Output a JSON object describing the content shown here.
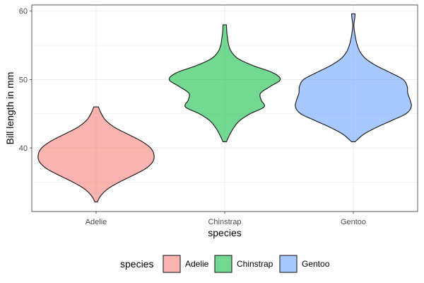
{
  "chart_data": {
    "type": "violin",
    "xlabel": "species",
    "ylabel": "Bill length in mm",
    "categories": [
      "Adelie",
      "Chinstrap",
      "Gentoo"
    ],
    "ylim": [
      30.7,
      60.9
    ],
    "yticks": [
      40,
      50,
      60
    ],
    "grid": true,
    "legend": {
      "title": "species",
      "position": "bottom"
    },
    "series": [
      {
        "name": "Adelie",
        "color": "#F8766D",
        "range": [
          32.1,
          46.0
        ],
        "density": [
          [
            32.1,
            0.02
          ],
          [
            33.0,
            0.08
          ],
          [
            34.0,
            0.2
          ],
          [
            35.0,
            0.4
          ],
          [
            36.0,
            0.64
          ],
          [
            37.0,
            0.86
          ],
          [
            38.0,
            0.98
          ],
          [
            39.0,
            1.0
          ],
          [
            40.0,
            0.94
          ],
          [
            41.0,
            0.78
          ],
          [
            42.0,
            0.55
          ],
          [
            43.0,
            0.32
          ],
          [
            44.0,
            0.17
          ],
          [
            45.0,
            0.09
          ],
          [
            46.0,
            0.04
          ]
        ]
      },
      {
        "name": "Chinstrap",
        "color": "#00BA38",
        "range": [
          40.9,
          58.0
        ],
        "density": [
          [
            40.9,
            0.03
          ],
          [
            42.0,
            0.09
          ],
          [
            43.0,
            0.16
          ],
          [
            44.0,
            0.26
          ],
          [
            45.0,
            0.44
          ],
          [
            46.0,
            0.68
          ],
          [
            47.0,
            0.63
          ],
          [
            48.0,
            0.62
          ],
          [
            49.0,
            0.79
          ],
          [
            50.0,
            0.96
          ],
          [
            51.0,
            0.83
          ],
          [
            52.0,
            0.5
          ],
          [
            53.0,
            0.24
          ],
          [
            54.0,
            0.12
          ],
          [
            55.0,
            0.07
          ],
          [
            56.0,
            0.05
          ],
          [
            57.0,
            0.035
          ],
          [
            58.0,
            0.03
          ]
        ]
      },
      {
        "name": "Gentoo",
        "color": "#619CFF",
        "range": [
          40.9,
          59.6
        ],
        "density": [
          [
            40.9,
            0.03
          ],
          [
            42.0,
            0.18
          ],
          [
            43.0,
            0.4
          ],
          [
            44.0,
            0.66
          ],
          [
            45.0,
            0.91
          ],
          [
            46.0,
            1.0
          ],
          [
            47.0,
            0.98
          ],
          [
            48.0,
            0.94
          ],
          [
            49.0,
            0.93
          ],
          [
            50.0,
            0.86
          ],
          [
            51.0,
            0.64
          ],
          [
            52.0,
            0.4
          ],
          [
            53.0,
            0.22
          ],
          [
            54.0,
            0.12
          ],
          [
            55.0,
            0.07
          ],
          [
            56.0,
            0.04
          ],
          [
            57.0,
            0.02
          ],
          [
            58.0,
            0.01
          ],
          [
            59.0,
            0.025
          ],
          [
            59.6,
            0.03
          ]
        ]
      }
    ]
  }
}
